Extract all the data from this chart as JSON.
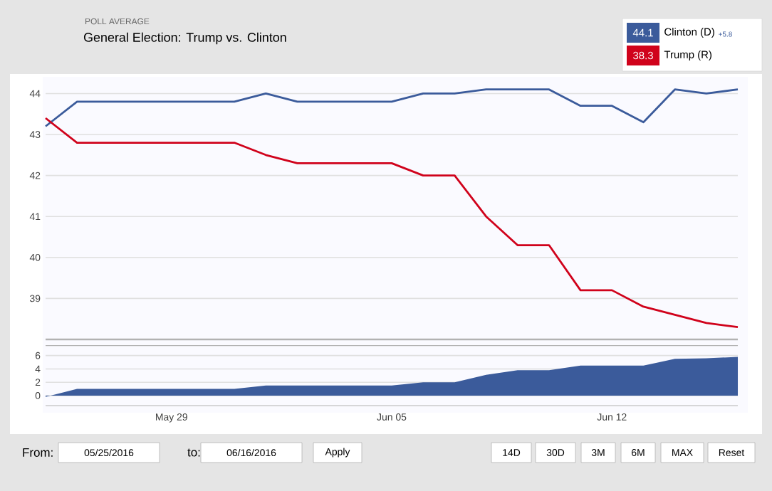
{
  "chart_data": [
    {
      "type": "line",
      "subtitle": "POLL AVERAGE",
      "title": "General Election: Trump vs. Clinton",
      "x": [
        "2016-05-25",
        "2016-05-26",
        "2016-05-27",
        "2016-05-28",
        "2016-05-29",
        "2016-05-30",
        "2016-05-31",
        "2016-06-01",
        "2016-06-02",
        "2016-06-03",
        "2016-06-04",
        "2016-06-05",
        "2016-06-06",
        "2016-06-07",
        "2016-06-08",
        "2016-06-09",
        "2016-06-10",
        "2016-06-11",
        "2016-06-12",
        "2016-06-13",
        "2016-06-14",
        "2016-06-15",
        "2016-06-16"
      ],
      "series": [
        {
          "name": "Clinton (D)",
          "color": "#3b5b9b",
          "values": [
            43.2,
            43.8,
            43.8,
            43.8,
            43.8,
            43.8,
            43.8,
            44.0,
            43.8,
            43.8,
            43.8,
            43.8,
            44.0,
            44.0,
            44.1,
            44.1,
            44.1,
            43.7,
            43.7,
            43.3,
            44.1,
            44.0,
            44.1
          ]
        },
        {
          "name": "Trump (R)",
          "color": "#d0021b",
          "values": [
            43.4,
            42.8,
            42.8,
            42.8,
            42.8,
            42.8,
            42.8,
            42.5,
            42.3,
            42.3,
            42.3,
            42.3,
            42.0,
            42.0,
            41.0,
            40.3,
            40.3,
            39.2,
            39.2,
            38.8,
            38.6,
            38.4,
            38.3
          ]
        }
      ],
      "xlim": [
        "2016-05-25",
        "2016-06-16"
      ],
      "ylim": [
        38.0,
        44.4
      ],
      "yticks": [
        39,
        40,
        41,
        42,
        43,
        44
      ],
      "grid": "y",
      "legend": "top right",
      "tick_labels": "y",
      "annotations": [
        "44.1",
        "38.3",
        "+5.8"
      ]
    },
    {
      "type": "area",
      "color": "#3b5b9b",
      "x": [
        "2016-05-25",
        "2016-05-26",
        "2016-05-27",
        "2016-05-28",
        "2016-05-29",
        "2016-05-30",
        "2016-05-31",
        "2016-06-01",
        "2016-06-02",
        "2016-06-03",
        "2016-06-04",
        "2016-06-05",
        "2016-06-06",
        "2016-06-07",
        "2016-06-08",
        "2016-06-09",
        "2016-06-10",
        "2016-06-11",
        "2016-06-12",
        "2016-06-13",
        "2016-06-14",
        "2016-06-15",
        "2016-06-16"
      ],
      "values": [
        -0.2,
        1.0,
        1.0,
        1.0,
        1.0,
        1.0,
        1.0,
        1.5,
        1.5,
        1.5,
        1.5,
        1.5,
        2.0,
        2.0,
        3.1,
        3.8,
        3.8,
        4.5,
        4.5,
        4.5,
        5.5,
        5.6,
        5.8
      ],
      "xlim": [
        "2016-05-25",
        "2016-06-16"
      ],
      "xticks": [
        {
          "value": "2016-05-29",
          "label": "May 29"
        },
        {
          "value": "2016-06-05",
          "label": "Jun 05"
        },
        {
          "value": "2016-06-12",
          "label": "Jun 12"
        }
      ],
      "ylim": [
        -1.5,
        7.5
      ],
      "yticks": [
        0,
        2,
        4,
        6
      ],
      "grid": "y",
      "annotations": [
        "From:",
        "05/25/2016",
        "to:",
        "06/16/2016",
        "Apply",
        "14D",
        "30D",
        "3M",
        "6M",
        "MAX",
        "Reset"
      ]
    }
  ]
}
